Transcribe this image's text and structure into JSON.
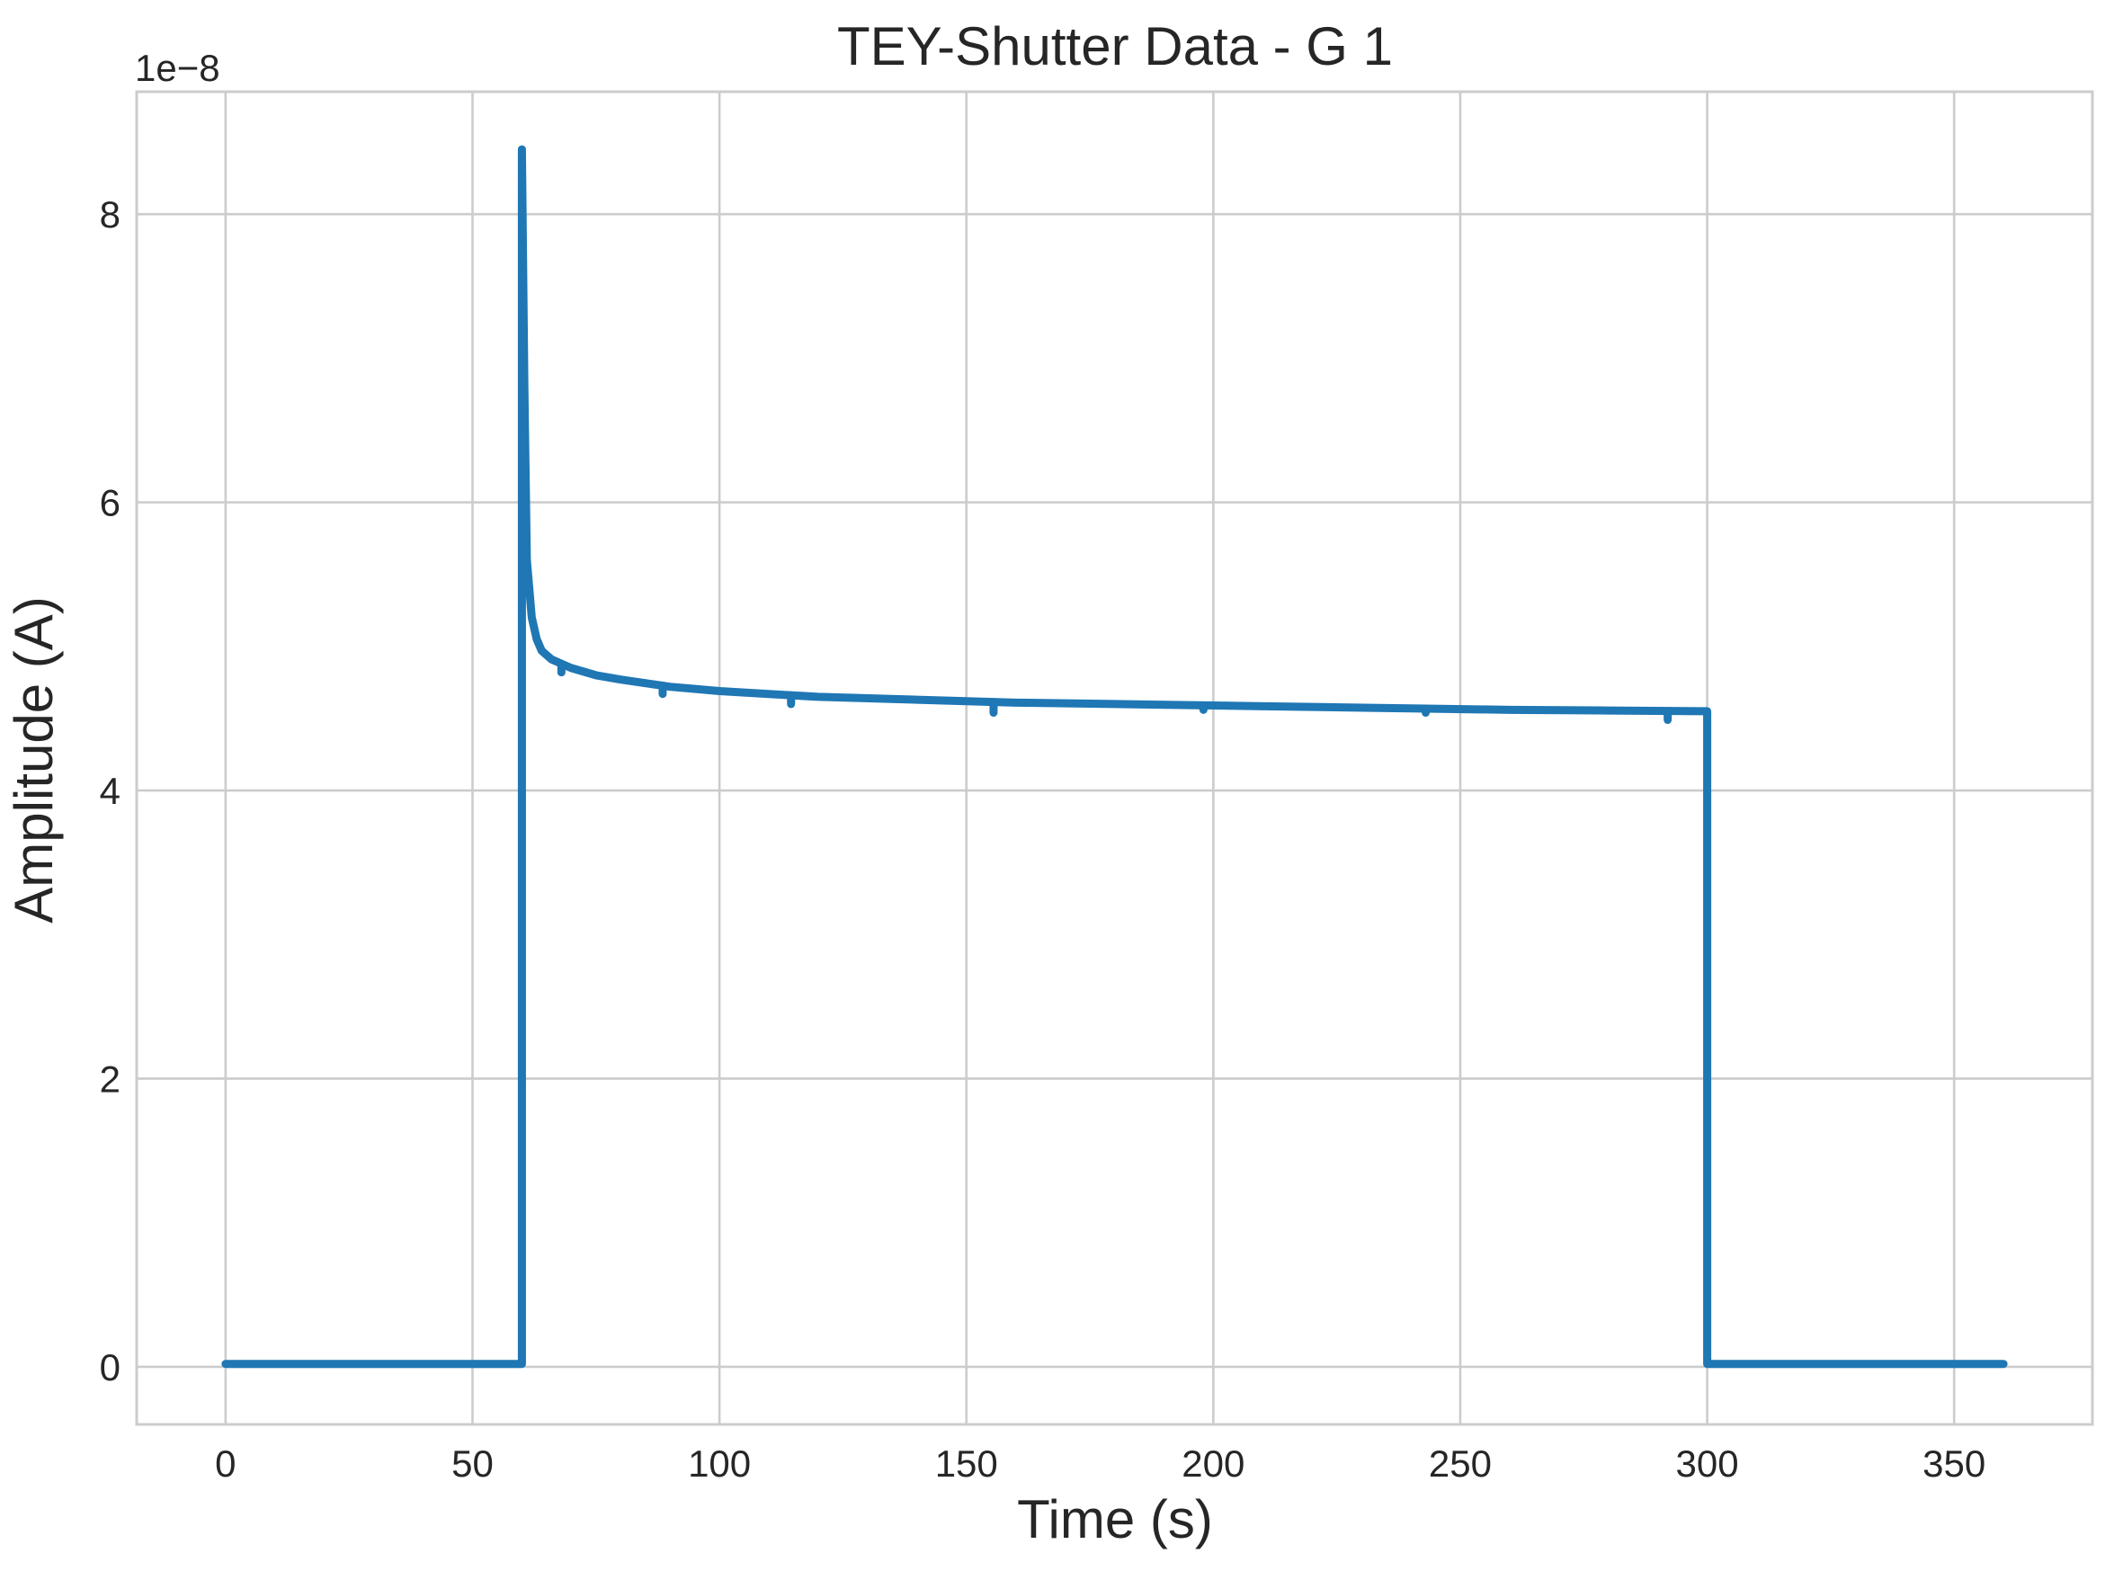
{
  "chart_data": {
    "type": "line",
    "title": "TEY-Shutter Data - G 1",
    "xlabel": "Time (s)",
    "ylabel": "Amplitude (A)",
    "y_offset_text": "1e−8",
    "xlim": [
      -18,
      378
    ],
    "ylim": [
      -0.4,
      8.85
    ],
    "y_scale_factor": 1e-08,
    "x_ticks": [
      0,
      50,
      100,
      150,
      200,
      250,
      300,
      350
    ],
    "x_tick_labels": [
      "0",
      "50",
      "100",
      "150",
      "200",
      "250",
      "300",
      "350"
    ],
    "y_ticks": [
      0,
      2,
      4,
      6,
      8
    ],
    "y_tick_labels": [
      "0",
      "2",
      "4",
      "6",
      "8"
    ],
    "grid": true,
    "legend": null,
    "colors": {
      "series": "#1f77b4",
      "grid": "#cccccc",
      "spine": "#cccccc",
      "text": "#262626"
    },
    "series": [
      {
        "x": [
          0,
          60,
          60,
          60.5,
          61,
          62,
          63,
          64,
          66,
          68,
          70,
          75,
          80,
          90,
          100,
          110,
          120,
          140,
          160,
          180,
          200,
          220,
          240,
          260,
          280,
          299,
          300,
          300,
          360
        ],
        "y": [
          0.02,
          0.02,
          8.45,
          6.8,
          5.6,
          5.2,
          5.05,
          4.97,
          4.91,
          4.88,
          4.85,
          4.8,
          4.77,
          4.72,
          4.69,
          4.67,
          4.65,
          4.63,
          4.61,
          4.6,
          4.59,
          4.58,
          4.57,
          4.56,
          4.555,
          4.55,
          4.55,
          0.02,
          0.02
        ]
      }
    ],
    "glitches": {
      "x": [
        68,
        88.5,
        114.5,
        155.5,
        198,
        243,
        292
      ],
      "y": [
        4.82,
        4.67,
        4.6,
        4.54,
        4.56,
        4.54,
        4.49
      ]
    }
  }
}
